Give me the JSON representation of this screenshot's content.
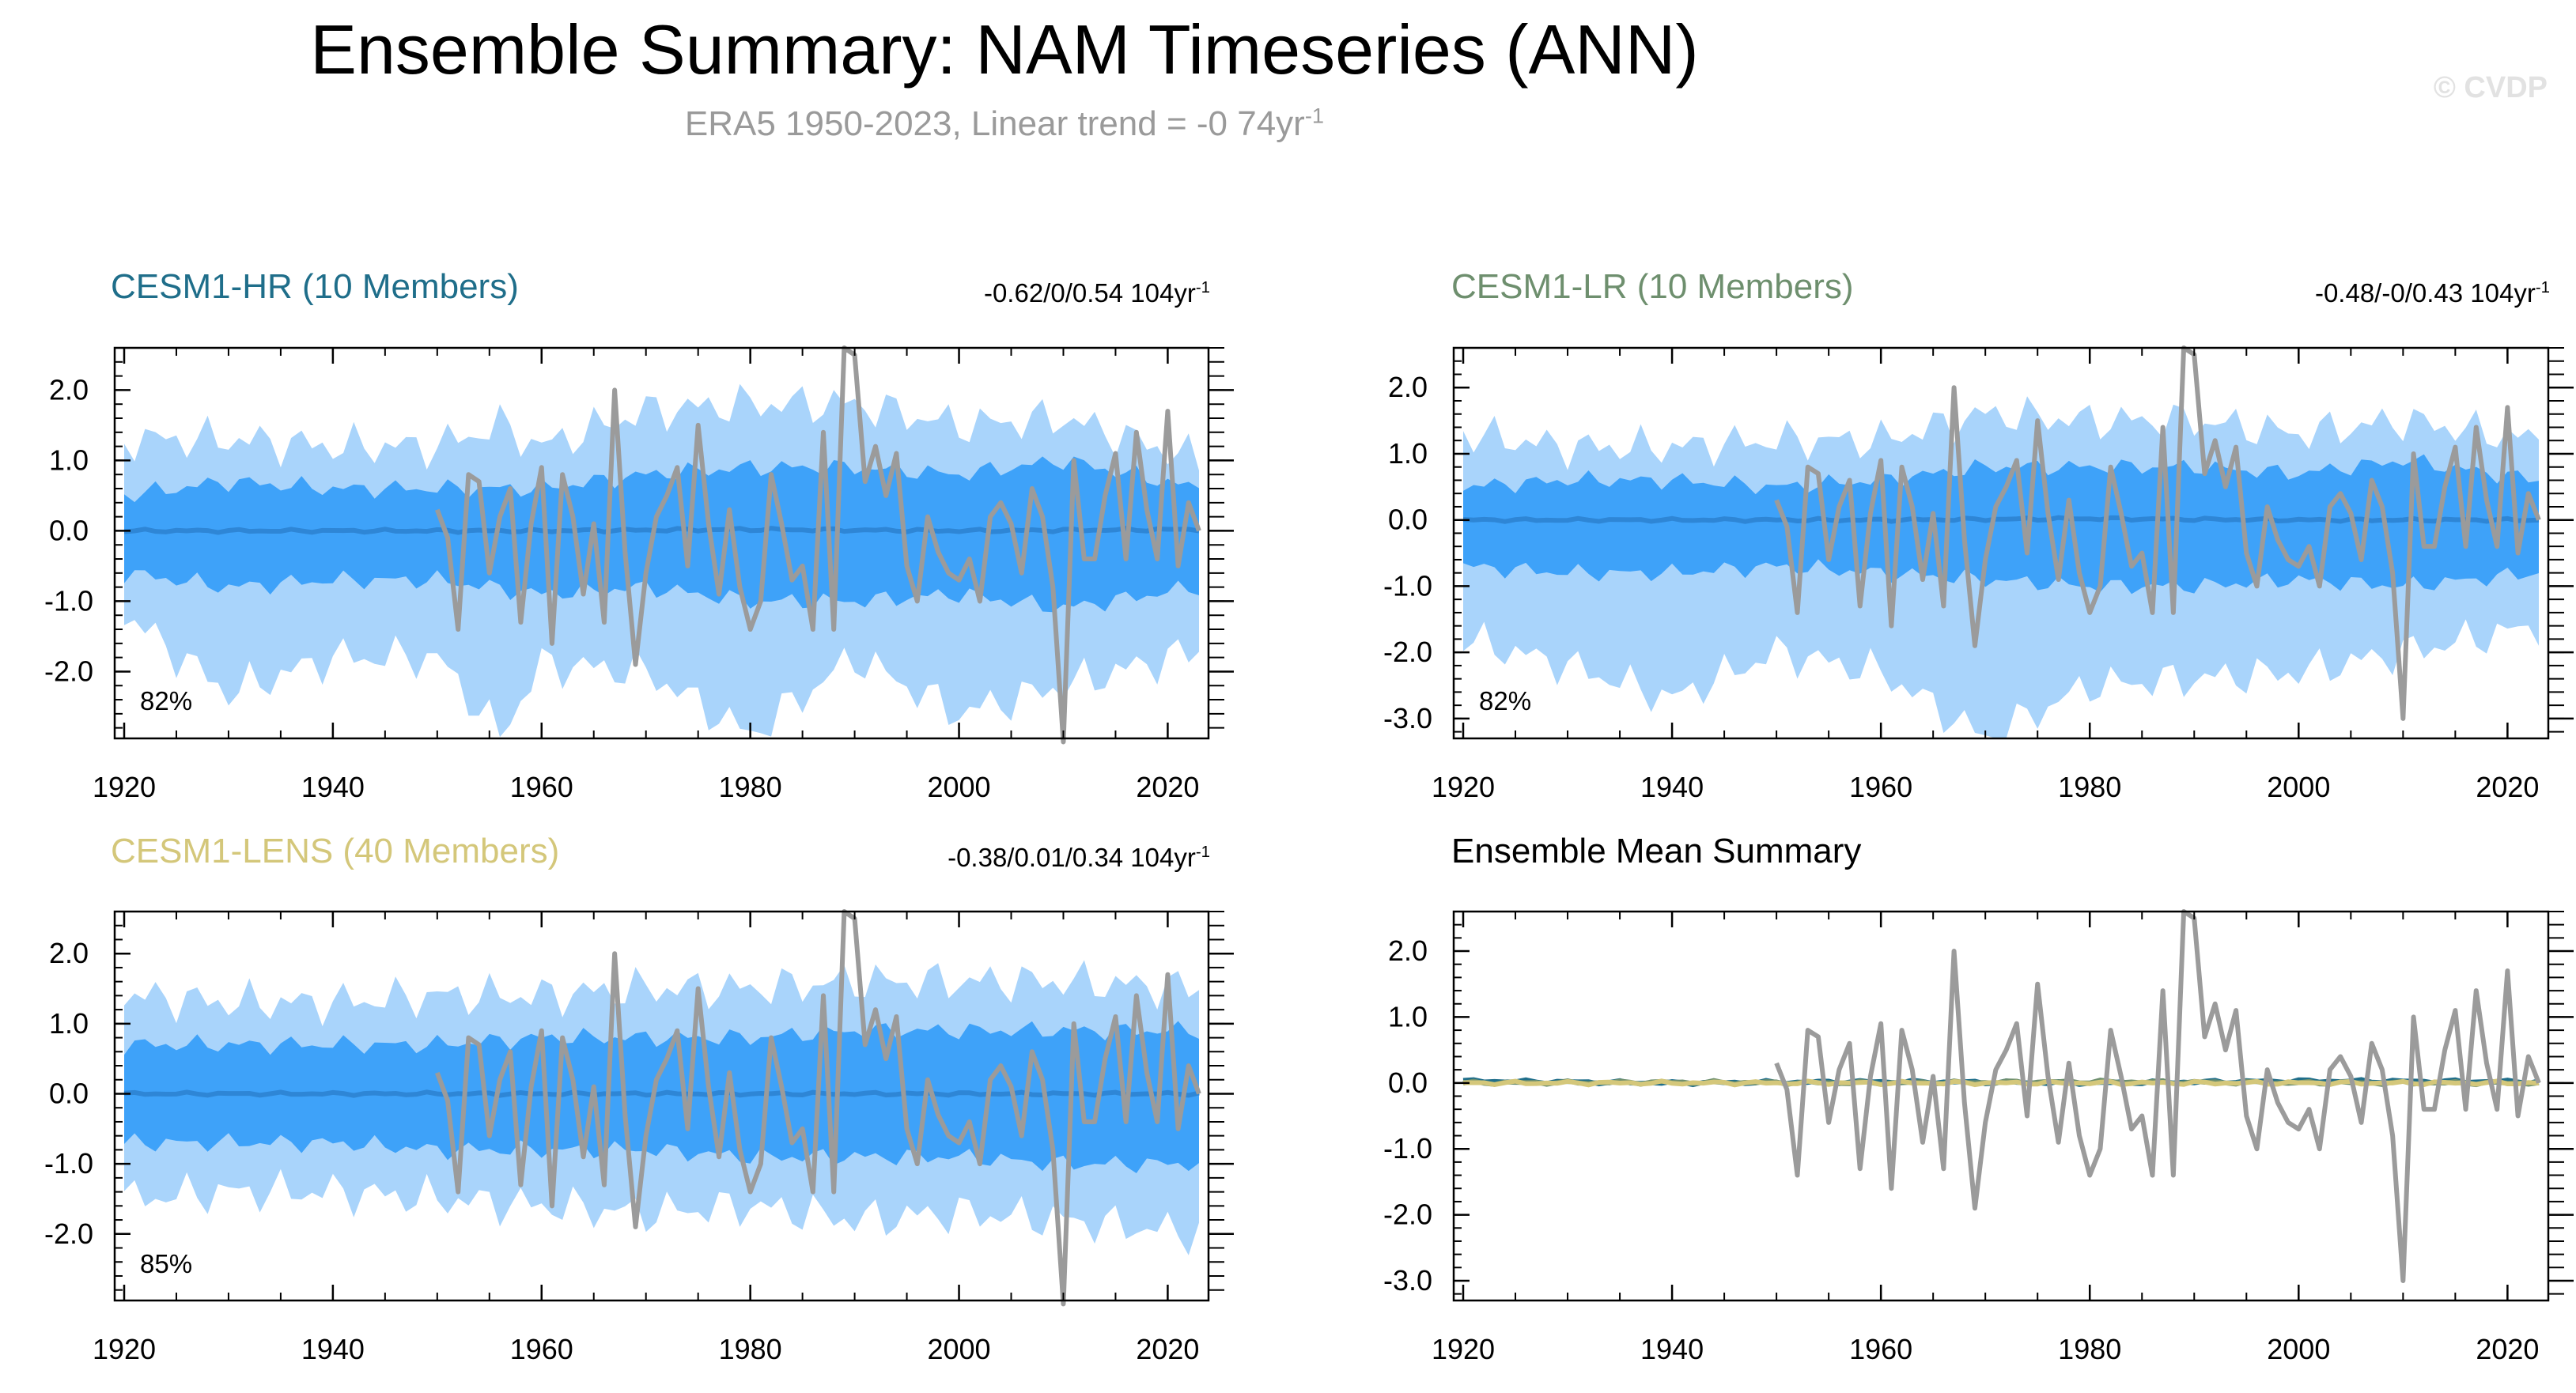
{
  "title": "Ensemble Summary: NAM Timeseries (ANN)",
  "subtitle_text": "ERA5 1950-2023, Linear trend = -0 74yr",
  "subtitle_sup": "-1",
  "watermark": "© CVDP",
  "panels": [
    {
      "title": "CESM1-HR (10 Members)",
      "title_color": "#1f6e8a",
      "trend_text": "-0.62/0/0.54 104yr",
      "trend_sup": "-1",
      "pct": "82%"
    },
    {
      "title": "CESM1-LR (10 Members)",
      "title_color": "#6e8f6e",
      "trend_text": "-0.48/-0/0.43 104yr",
      "trend_sup": "-1",
      "pct": "82%"
    },
    {
      "title": "CESM1-LENS (40 Members)",
      "title_color": "#d4c77a",
      "trend_text": "-0.38/0.01/0.34 104yr",
      "trend_sup": "-1",
      "pct": "85%"
    },
    {
      "title": "Ensemble Mean Summary",
      "title_color": "#000000",
      "trend_text": "",
      "trend_sup": "",
      "pct": ""
    }
  ],
  "colors": {
    "band_outer": "#a9d4fb",
    "band_inner": "#3ea2f9",
    "ens_mean": "#2e86d6",
    "obs": "#9b9b9b",
    "summary_hr": "#1f6e8a",
    "summary_lr": "#6e8f6e",
    "summary_lens": "#d4c77a"
  },
  "chart_data": [
    {
      "type": "area",
      "panel": "CESM1-HR (10 Members)",
      "x_range": [
        1920,
        2023
      ],
      "xticks": [
        1920,
        1940,
        1960,
        1980,
        2000,
        2020
      ],
      "yticks": [
        2.0,
        1.0,
        0.0,
        -1.0,
        -2.0
      ],
      "ylim": [
        -2.95,
        2.6
      ],
      "series": [
        {
          "band": "outer",
          "x": [
            1920,
            1930,
            1940,
            1950,
            1956,
            1960,
            1970,
            1980,
            1990,
            2000,
            2010,
            2023
          ],
          "upper": [
            1.3,
            1.3,
            1.2,
            1.2,
            1.5,
            1.2,
            1.7,
            1.8,
            1.8,
            1.5,
            1.6,
            1.0
          ],
          "lower": [
            -1.2,
            -2.3,
            -1.8,
            -1.8,
            -2.9,
            -1.9,
            -2.0,
            -2.9,
            -1.8,
            -2.6,
            -2.2,
            -1.7
          ]
        },
        {
          "band": "inner",
          "x": [
            1920,
            1930,
            1940,
            1950,
            1960,
            1970,
            1980,
            1990,
            2000,
            2010,
            2023
          ],
          "upper": [
            0.5,
            0.7,
            0.6,
            0.6,
            0.6,
            0.8,
            0.9,
            0.9,
            0.8,
            1.0,
            0.6
          ],
          "lower": [
            -0.6,
            -0.8,
            -0.7,
            -0.7,
            -0.9,
            -0.8,
            -1.0,
            -1.0,
            -0.9,
            -1.1,
            -0.8
          ]
        },
        {
          "name": "ensemble mean",
          "x": [
            1920,
            1940,
            1960,
            1980,
            2000,
            2023
          ],
          "values": [
            0.0,
            0.0,
            0.0,
            0.02,
            0.0,
            0.02
          ]
        }
      ]
    },
    {
      "type": "area",
      "panel": "CESM1-LR (10 Members)",
      "x_range": [
        1920,
        2023
      ],
      "xticks": [
        1920,
        1940,
        1960,
        1980,
        2000,
        2020
      ],
      "yticks": [
        2.0,
        1.0,
        0.0,
        -1.0,
        -2.0,
        -3.0
      ],
      "ylim": [
        -3.3,
        2.6
      ],
      "series": [
        {
          "band": "outer",
          "x": [
            1920,
            1930,
            1940,
            1950,
            1960,
            1970,
            1980,
            1990,
            2000,
            2010,
            2023
          ],
          "upper": [
            1.3,
            1.1,
            1.1,
            1.2,
            1.2,
            1.6,
            1.5,
            1.5,
            1.3,
            1.5,
            1.2
          ],
          "lower": [
            -1.8,
            -2.2,
            -2.7,
            -2.0,
            -2.3,
            -3.3,
            -2.5,
            -2.4,
            -2.3,
            -2.0,
            -1.6
          ]
        },
        {
          "band": "inner",
          "x": [
            1920,
            1930,
            1940,
            1950,
            1960,
            1970,
            1980,
            1990,
            2000,
            2010,
            2023
          ],
          "upper": [
            0.5,
            0.6,
            0.6,
            0.5,
            0.6,
            0.8,
            0.8,
            0.8,
            0.7,
            0.9,
            0.6
          ],
          "lower": [
            -0.7,
            -0.8,
            -0.8,
            -0.7,
            -0.8,
            -0.9,
            -1.0,
            -1.0,
            -0.9,
            -1.0,
            -0.8
          ]
        },
        {
          "name": "ensemble mean",
          "x": [
            1920,
            1940,
            1960,
            1980,
            2000,
            2023
          ],
          "values": [
            0.0,
            0.0,
            0.0,
            0.02,
            0.0,
            0.0
          ]
        }
      ]
    },
    {
      "type": "area",
      "panel": "CESM1-LENS (40 Members)",
      "x_range": [
        1920,
        2023
      ],
      "xticks": [
        1920,
        1940,
        1960,
        1980,
        2000,
        2020
      ],
      "yticks": [
        2.0,
        1.0,
        0.0,
        -1.0,
        -2.0
      ],
      "ylim": [
        -2.95,
        2.6
      ],
      "series": [
        {
          "band": "outer",
          "x": [
            1920,
            1930,
            1940,
            1950,
            1960,
            1970,
            1980,
            1990,
            2000,
            2010,
            2023
          ],
          "upper": [
            1.4,
            1.3,
            1.3,
            1.4,
            1.4,
            1.5,
            1.5,
            1.6,
            1.6,
            1.6,
            1.5
          ],
          "lower": [
            -1.5,
            -1.4,
            -1.4,
            -1.5,
            -1.6,
            -1.7,
            -1.6,
            -1.8,
            -1.7,
            -1.8,
            -2.0
          ]
        },
        {
          "band": "inner",
          "x": [
            1920,
            1930,
            1940,
            1950,
            1960,
            1970,
            1980,
            1990,
            2000,
            2010,
            2023
          ],
          "upper": [
            0.7,
            0.7,
            0.7,
            0.7,
            0.8,
            0.8,
            0.8,
            0.9,
            0.9,
            0.9,
            0.9
          ],
          "lower": [
            -0.7,
            -0.7,
            -0.7,
            -0.8,
            -0.8,
            -0.8,
            -0.9,
            -0.9,
            -0.9,
            -1.0,
            -1.0
          ]
        },
        {
          "name": "ensemble mean",
          "x": [
            1920,
            1940,
            1960,
            1980,
            2000,
            2023
          ],
          "values": [
            0.0,
            0.0,
            0.0,
            0.0,
            0.0,
            0.0
          ]
        }
      ]
    },
    {
      "type": "line",
      "panel": "Ensemble Mean Summary",
      "x_range": [
        1920,
        2023
      ],
      "xticks": [
        1920,
        1940,
        1960,
        1980,
        2000,
        2020
      ],
      "yticks": [
        2.0,
        1.0,
        0.0,
        -1.0,
        -2.0,
        -3.0
      ],
      "ylim": [
        -3.3,
        2.6
      ],
      "series": [
        {
          "name": "CESM1-HR",
          "x": [
            1920,
            1940,
            1960,
            1980,
            2000,
            2023
          ],
          "values": [
            0.03,
            0.0,
            0.02,
            0.0,
            0.03,
            0.02
          ]
        },
        {
          "name": "CESM1-LR",
          "x": [
            1920,
            1940,
            1960,
            1980,
            2000,
            2023
          ],
          "values": [
            0.0,
            0.01,
            0.0,
            0.02,
            0.0,
            0.0
          ]
        },
        {
          "name": "CESM1-LENS",
          "x": [
            1920,
            1940,
            1960,
            1980,
            2000,
            2023
          ],
          "values": [
            0.0,
            0.0,
            0.0,
            0.0,
            0.0,
            0.0
          ]
        }
      ]
    }
  ],
  "obs_series": {
    "name": "ERA5",
    "x": [
      1950,
      1951,
      1952,
      1953,
      1954,
      1955,
      1956,
      1957,
      1958,
      1959,
      1960,
      1961,
      1962,
      1963,
      1964,
      1965,
      1966,
      1967,
      1968,
      1969,
      1970,
      1971,
      1972,
      1973,
      1974,
      1975,
      1976,
      1977,
      1978,
      1979,
      1980,
      1981,
      1982,
      1983,
      1984,
      1985,
      1986,
      1987,
      1988,
      1989,
      1990,
      1991,
      1992,
      1993,
      1994,
      1995,
      1996,
      1997,
      1998,
      1999,
      2000,
      2001,
      2002,
      2003,
      2004,
      2005,
      2006,
      2007,
      2008,
      2009,
      2010,
      2011,
      2012,
      2013,
      2014,
      2015,
      2016,
      2017,
      2018,
      2019,
      2020,
      2021,
      2022,
      2023
    ],
    "values": [
      0.3,
      -0.1,
      -1.4,
      0.8,
      0.7,
      -0.6,
      0.2,
      0.6,
      -1.3,
      0.1,
      0.9,
      -1.6,
      0.8,
      0.2,
      -0.9,
      0.1,
      -1.3,
      2.0,
      -0.3,
      -1.9,
      -0.6,
      0.2,
      0.5,
      0.9,
      -0.5,
      1.5,
      0.1,
      -0.9,
      0.3,
      -0.8,
      -1.4,
      -1.0,
      0.8,
      0.1,
      -0.7,
      -0.5,
      -1.4,
      1.4,
      -1.4,
      2.6,
      2.5,
      0.7,
      1.2,
      0.5,
      1.1,
      -0.5,
      -1.0,
      0.2,
      -0.3,
      -0.6,
      -0.7,
      -0.4,
      -1.0,
      0.2,
      0.4,
      0.1,
      -0.6,
      0.6,
      0.2,
      -0.8,
      -3.0,
      1.0,
      -0.4,
      -0.4,
      0.5,
      1.1,
      -0.4,
      1.4,
      0.3,
      -0.4,
      1.7,
      -0.5,
      0.4,
      0.0
    ]
  }
}
